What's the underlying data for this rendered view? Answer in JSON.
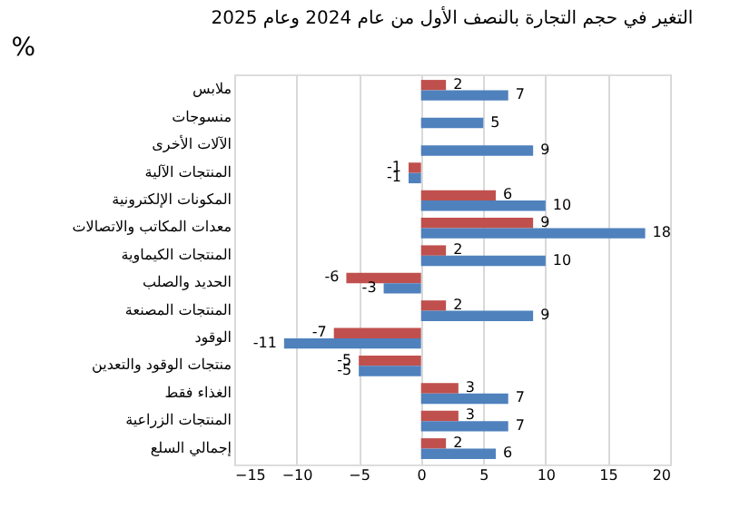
{
  "chart_data": {
    "type": "bar",
    "orientation": "horizontal",
    "title": "التغير في حجم التجارة بالنصف الأول من عام 2024 وعام 2025",
    "ylabel": "%",
    "categories": [
      "ملابس",
      "منسوجات",
      "الآلات الأخرى",
      "المنتجات الآلية",
      "المكونات الإلكترونية",
      "معدات المكاتب والاتصالات",
      "المنتجات الكيماوية",
      "الحديد والصلب",
      "المنتجات المصنعة",
      "الوقود",
      "منتجات الوقود والتعدين",
      "الغذاء فقط",
      "المنتجات الزراعية",
      "إجمالي السلع"
    ],
    "series": [
      {
        "color": "#c0504d",
        "values": [
          2,
          null,
          null,
          -1,
          6,
          9,
          2,
          -6,
          2,
          -7,
          -5,
          3,
          3,
          2
        ]
      },
      {
        "color": "#4f81bd",
        "values": [
          7,
          5,
          9,
          -1,
          10,
          18,
          10,
          -3,
          9,
          -11,
          -5,
          7,
          7,
          6
        ]
      }
    ],
    "xlim": [
      -15,
      20
    ],
    "xticks": [
      -15,
      -10,
      -5,
      0,
      5,
      10,
      15,
      20
    ],
    "grid": "x",
    "data_labels": true
  }
}
